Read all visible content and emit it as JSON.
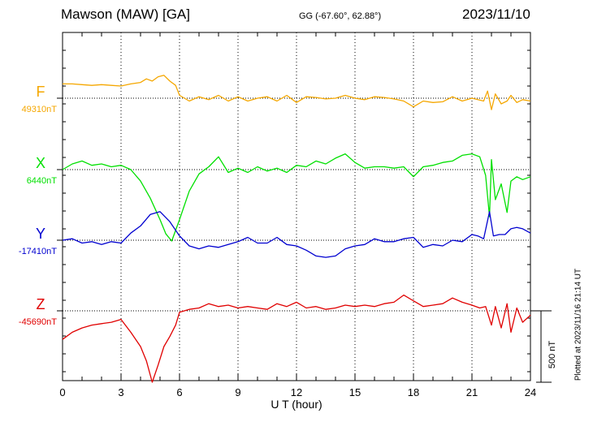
{
  "header": {
    "station": "Mawson (MAW)  [GA]",
    "coords": "GG (-67.60°,  62.88°)",
    "date": "2023/11/10",
    "plotted": "Plotted at 2023/11/16 21:14 UT"
  },
  "colors": {
    "F": "#f5a700",
    "X": "#00e000",
    "Y": "#0000d0",
    "Z": "#e00000"
  },
  "chart_data": {
    "type": "line",
    "title": "Mawson (MAW)  [GA]",
    "xlabel": "U T (hour)",
    "ylabel": "",
    "xlim": [
      0,
      24
    ],
    "xticks": [
      0,
      3,
      6,
      9,
      12,
      15,
      18,
      21,
      24
    ],
    "scale_bar": {
      "value_nT": 500,
      "label": "500 nT"
    },
    "series": [
      {
        "name": "F",
        "baseline_label": "49310nT",
        "baseline_nT": 49310,
        "color": "#f5a700",
        "x": [
          0,
          0.5,
          1,
          1.5,
          2,
          2.5,
          3,
          3.5,
          4,
          4.3,
          4.6,
          4.9,
          5.2,
          5.5,
          5.8,
          6,
          6.5,
          7,
          7.5,
          8,
          8.5,
          9,
          9.5,
          10,
          10.5,
          11,
          11.5,
          12,
          12.5,
          13,
          13.5,
          14,
          14.5,
          15,
          15.5,
          16,
          16.5,
          17,
          17.5,
          18,
          18.5,
          19,
          19.5,
          20,
          20.5,
          21,
          21.3,
          21.6,
          21.8,
          22,
          22.2,
          22.5,
          22.8,
          23,
          23.3,
          23.6,
          24
        ],
        "y": [
          100,
          100,
          95,
          90,
          95,
          90,
          85,
          100,
          110,
          135,
          120,
          150,
          160,
          120,
          90,
          20,
          -20,
          10,
          -10,
          20,
          -20,
          10,
          -20,
          0,
          10,
          -20,
          20,
          -30,
          10,
          5,
          -5,
          0,
          20,
          0,
          -10,
          10,
          5,
          -5,
          -20,
          -60,
          -20,
          -30,
          -25,
          10,
          -20,
          0,
          -10,
          -20,
          50,
          -80,
          30,
          -40,
          -20,
          20,
          -30,
          -10,
          -20
        ]
      },
      {
        "name": "X",
        "baseline_label": "6440nT",
        "baseline_nT": 6440,
        "color": "#00e000",
        "x": [
          0,
          0.5,
          1,
          1.5,
          2,
          2.5,
          3,
          3.5,
          4,
          4.5,
          5,
          5.3,
          5.6,
          6,
          6.5,
          7,
          7.5,
          8,
          8.5,
          9,
          9.5,
          10,
          10.5,
          11,
          11.5,
          12,
          12.5,
          13,
          13.5,
          14,
          14.5,
          15,
          15.5,
          16,
          16.5,
          17,
          17.5,
          18,
          18.5,
          19,
          19.5,
          20,
          20.5,
          21,
          21.4,
          21.7,
          21.9,
          22,
          22.2,
          22.5,
          22.8,
          23,
          23.3,
          23.6,
          24
        ],
        "y": [
          0,
          40,
          60,
          30,
          40,
          20,
          30,
          0,
          -80,
          -200,
          -350,
          -450,
          -500,
          -350,
          -150,
          -30,
          20,
          90,
          -20,
          10,
          -20,
          20,
          -10,
          10,
          -20,
          30,
          20,
          60,
          40,
          80,
          110,
          50,
          10,
          20,
          20,
          10,
          20,
          -50,
          20,
          30,
          50,
          60,
          100,
          110,
          90,
          -40,
          -330,
          70,
          -210,
          -100,
          -300,
          -80,
          -50,
          -70,
          -50
        ]
      },
      {
        "name": "Y",
        "baseline_label": "-17410nT",
        "baseline_nT": -17410,
        "color": "#0000d0",
        "x": [
          0,
          0.5,
          1,
          1.5,
          2,
          2.5,
          3,
          3.5,
          4,
          4.5,
          5,
          5.5,
          6,
          6.5,
          7,
          7.5,
          8,
          8.5,
          9,
          9.5,
          10,
          10.5,
          11,
          11.5,
          12,
          12.5,
          13,
          13.5,
          14,
          14.5,
          15,
          15.5,
          16,
          16.5,
          17,
          17.5,
          18,
          18.5,
          19,
          19.5,
          20,
          20.5,
          21,
          21.3,
          21.6,
          21.9,
          22.1,
          22.4,
          22.7,
          23,
          23.3,
          23.6,
          24
        ],
        "y": [
          0,
          10,
          -20,
          -10,
          -30,
          -10,
          -20,
          50,
          100,
          180,
          200,
          130,
          30,
          -40,
          -60,
          -40,
          -50,
          -30,
          -10,
          20,
          -20,
          -20,
          20,
          -30,
          -40,
          -70,
          -110,
          -120,
          -110,
          -60,
          -40,
          -30,
          10,
          -10,
          -10,
          10,
          20,
          -50,
          -30,
          -40,
          0,
          -10,
          40,
          30,
          10,
          200,
          30,
          40,
          40,
          80,
          90,
          80,
          50
        ]
      },
      {
        "name": "Z",
        "baseline_label": "-45690nT",
        "baseline_nT": -45690,
        "color": "#e00000",
        "x": [
          0,
          0.5,
          1,
          1.5,
          2,
          2.5,
          3,
          3.5,
          4,
          4.3,
          4.6,
          4.9,
          5.2,
          5.5,
          5.8,
          6,
          6.5,
          7,
          7.5,
          8,
          8.5,
          9,
          9.5,
          10,
          10.5,
          11,
          11.5,
          12,
          12.5,
          13,
          13.5,
          14,
          14.5,
          15,
          15.5,
          16,
          16.5,
          17,
          17.5,
          18,
          18.5,
          19,
          19.5,
          20,
          20.5,
          21,
          21.4,
          21.7,
          22,
          22.2,
          22.5,
          22.8,
          23,
          23.3,
          23.6,
          24
        ],
        "y": [
          -200,
          -150,
          -120,
          -100,
          -90,
          -80,
          -60,
          -150,
          -250,
          -350,
          -500,
          -380,
          -250,
          -180,
          -100,
          -10,
          10,
          20,
          50,
          30,
          40,
          20,
          30,
          20,
          10,
          50,
          30,
          60,
          20,
          30,
          10,
          20,
          40,
          30,
          40,
          30,
          50,
          60,
          110,
          70,
          30,
          40,
          50,
          90,
          60,
          40,
          20,
          30,
          -100,
          30,
          -120,
          50,
          -150,
          20,
          -80,
          -30
        ]
      }
    ]
  }
}
